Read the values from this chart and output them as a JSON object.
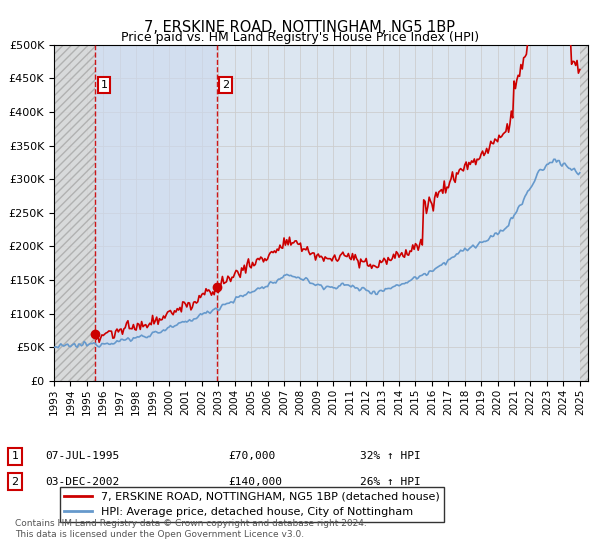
{
  "title": "7, ERSKINE ROAD, NOTTINGHAM, NG5 1BP",
  "subtitle": "Price paid vs. HM Land Registry's House Price Index (HPI)",
  "ylim": [
    0,
    500000
  ],
  "yticks": [
    0,
    50000,
    100000,
    150000,
    200000,
    250000,
    300000,
    350000,
    400000,
    450000,
    500000
  ],
  "xlim_start": 1993.0,
  "xlim_end": 2025.5,
  "sale1_date": 1995.52,
  "sale1_price": 70000,
  "sale1_label": "1",
  "sale1_info": "07-JUL-1995",
  "sale1_amount": "£70,000",
  "sale1_hpi": "32% ↑ HPI",
  "sale2_date": 2002.92,
  "sale2_price": 140000,
  "sale2_label": "2",
  "sale2_info": "03-DEC-2002",
  "sale2_amount": "£140,000",
  "sale2_hpi": "26% ↑ HPI",
  "line1_color": "#cc0000",
  "line2_color": "#6699cc",
  "grid_color": "#cccccc",
  "bg_color": "#dce6f1",
  "legend1_label": "7, ERSKINE ROAD, NOTTINGHAM, NG5 1BP (detached house)",
  "legend2_label": "HPI: Average price, detached house, City of Nottingham",
  "footer": "Contains HM Land Registry data © Crown copyright and database right 2024.\nThis data is licensed under the Open Government Licence v3.0.",
  "xtick_years": [
    1993,
    1994,
    1995,
    1996,
    1997,
    1998,
    1999,
    2000,
    2001,
    2002,
    2003,
    2004,
    2005,
    2006,
    2007,
    2008,
    2009,
    2010,
    2011,
    2012,
    2013,
    2014,
    2015,
    2016,
    2017,
    2018,
    2019,
    2020,
    2021,
    2022,
    2023,
    2024,
    2025
  ]
}
